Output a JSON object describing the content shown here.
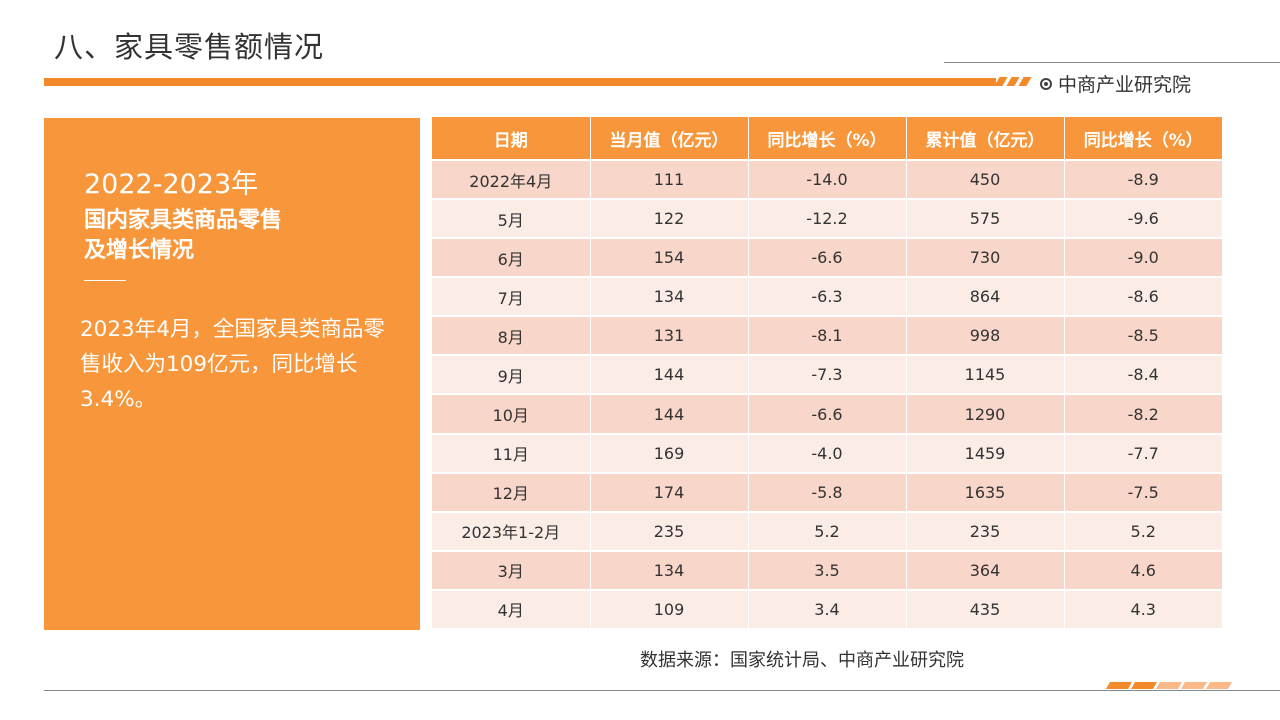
{
  "page": {
    "title": "八、家具零售额情况",
    "brand": "中商产业研究院",
    "accent_color": "#f28a2a"
  },
  "left_panel": {
    "year": "2022-2023年",
    "subtitle_line1": "国内家具类商品零售",
    "subtitle_line2": "及增长情况",
    "body": "2023年4月，全国家具类商品零售收入为109亿元，同比增长3.4%。"
  },
  "table": {
    "headers": [
      "日期",
      "当月值（亿元）",
      "同比增长（%）",
      "累计值（亿元）",
      "同比增长（%）"
    ],
    "rows": [
      [
        "2022年4月",
        "111",
        "-14.0",
        "450",
        "-8.9"
      ],
      [
        "5月",
        "122",
        "-12.2",
        "575",
        "-9.6"
      ],
      [
        "6月",
        "154",
        "-6.6",
        "730",
        "-9.0"
      ],
      [
        "7月",
        "134",
        "-6.3",
        "864",
        "-8.6"
      ],
      [
        "8月",
        "131",
        "-8.1",
        "998",
        "-8.5"
      ],
      [
        "9月",
        "144",
        "-7.3",
        "1145",
        "-8.4"
      ],
      [
        "10月",
        "144",
        "-6.6",
        "1290",
        "-8.2"
      ],
      [
        "11月",
        "169",
        "-4.0",
        "1459",
        "-7.7"
      ],
      [
        "12月",
        "174",
        "-5.8",
        "1635",
        "-7.5"
      ],
      [
        "2023年1-2月",
        "235",
        "5.2",
        "235",
        "5.2"
      ],
      [
        "3月",
        "134",
        "3.5",
        "364",
        "4.6"
      ],
      [
        "4月",
        "109",
        "3.4",
        "435",
        "4.3"
      ]
    ]
  },
  "source": "数据来源：国家统计局、中商产业研究院"
}
